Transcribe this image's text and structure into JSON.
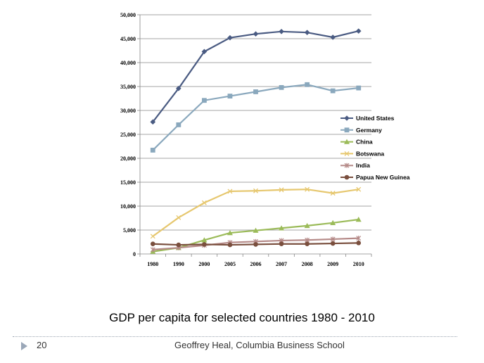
{
  "slide": {
    "caption": "GDP per capita for selected countries 1980 - 2010",
    "number": "20",
    "footer": "Geoffrey Heal,  Columbia Business School"
  },
  "chart_data": {
    "type": "line",
    "categories": [
      "1980",
      "1990",
      "2000",
      "2005",
      "2006",
      "2007",
      "2008",
      "2009",
      "2010"
    ],
    "y_ticks": [
      "0",
      "5,000",
      "10,000",
      "15,000",
      "20,000",
      "25,000",
      "30,000",
      "35,000",
      "40,000",
      "45,000",
      "50,000"
    ],
    "ylim": [
      0,
      50000
    ],
    "grid": "horizontal",
    "legend_position": "right",
    "series": [
      {
        "name": "United States",
        "color": "#4a5b82",
        "marker": "diamond",
        "values": [
          27600,
          34600,
          42300,
          45200,
          46000,
          46500,
          46300,
          45300,
          46600
        ]
      },
      {
        "name": "Germany",
        "color": "#8aa8bd",
        "marker": "square",
        "values": [
          21700,
          27000,
          32100,
          33000,
          33900,
          34800,
          35400,
          34100,
          34700
        ]
      },
      {
        "name": "China",
        "color": "#9bbb59",
        "marker": "triangle",
        "values": [
          500,
          1300,
          2900,
          4400,
          4900,
          5400,
          5900,
          6500,
          7200
        ]
      },
      {
        "name": "Botswana",
        "color": "#e6c76e",
        "marker": "x",
        "values": [
          3700,
          7600,
          10700,
          13100,
          13200,
          13400,
          13500,
          12700,
          13500
        ]
      },
      {
        "name": "India",
        "color": "#b58a88",
        "marker": "star",
        "values": [
          900,
          1300,
          1800,
          2400,
          2600,
          2800,
          2900,
          3100,
          3300
        ]
      },
      {
        "name": "Papua New Guinea",
        "color": "#7a4f3e",
        "marker": "circle",
        "values": [
          2100,
          1900,
          2000,
          1900,
          2000,
          2100,
          2100,
          2200,
          2300
        ]
      }
    ]
  }
}
